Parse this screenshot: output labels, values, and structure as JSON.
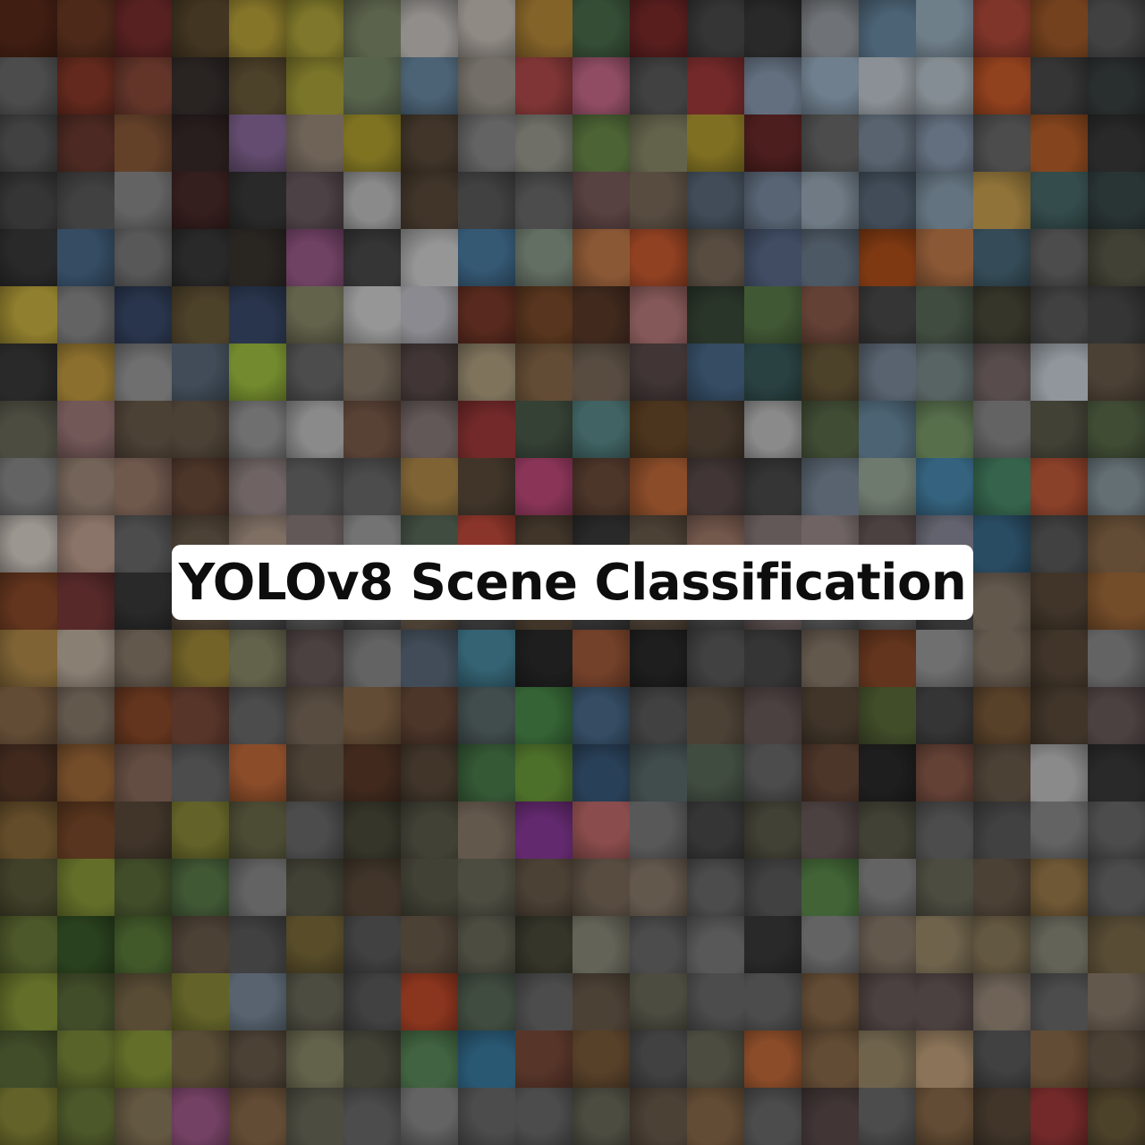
{
  "title": "YOLOv8 Scene Classification",
  "colors": {
    "card_background": "#ffffff",
    "title_text": "#0d0d0d",
    "page_background": "#000000"
  },
  "mosaic": {
    "rows": 20,
    "columns": 20,
    "tile_palette": [
      [
        "#5a2a1a",
        "#6b3a24",
        "#7a2e2e",
        "#5c4a2e",
        "#b8a23a",
        "#b0a63c",
        "#7f8a6a",
        "#c8c4c0",
        "#c8c0b8",
        "#b88a3a",
        "#4a6a4a",
        "#7a2a2a",
        "#4a4a4a",
        "#3a3a3a",
        "#9aa0a6",
        "#6a8aa4",
        "#9ab0c0",
        "#b04a3a",
        "#a05a2a",
        "#5a5a5a"
      ],
      [
        "#6a6a6a",
        "#8a3a2a",
        "#8a4a3a",
        "#3a3230",
        "#6a5a3a",
        "#aaa23a",
        "#7a8a6a",
        "#6a8aa4",
        "#a09a90",
        "#b04a4a",
        "#c86a8a",
        "#5a5a5a",
        "#a03a3a",
        "#8a9ab0",
        "#9ab0c4",
        "#c0c8d0",
        "#b8c4cc",
        "#c85a2a",
        "#4a4a4a",
        "#3a4040"
      ],
      [
        "#5a5a5a",
        "#6a3a30",
        "#8a5a3a",
        "#3a2a2a",
        "#8a6a9a",
        "#9a8a7a",
        "#b0a030",
        "#5a4a3a",
        "#8a8a8a",
        "#9a9a90",
        "#6a8a4a",
        "#8a8a6a",
        "#b09a30",
        "#6a2a2a",
        "#6a6a6a",
        "#7a8a9a",
        "#8a9ab0",
        "#6a6a6a",
        "#b8602a",
        "#3a3a3a"
      ],
      [
        "#4a4a4a",
        "#5a5a5a",
        "#8a8a8a",
        "#4a2a2a",
        "#3a3a3a",
        "#6a5a60",
        "#c0c0c0",
        "#5a4a3a",
        "#5a5a5a",
        "#6a6a6a",
        "#7a5a5a",
        "#7a6a5a",
        "#5a6a7a",
        "#7a8aa0",
        "#9aaab8",
        "#5a6a7a",
        "#8aa0b0",
        "#c8a050",
        "#4a6a6a",
        "#3a4a4a"
      ],
      [
        "#3a3a3a",
        "#4a6a8a",
        "#7a7a7a",
        "#3a3a3a",
        "#3a3530",
        "#9a5a8a",
        "#4a4a4a",
        "#d0d0d0",
        "#4a7aa0",
        "#8a9a8a",
        "#c07a4a",
        "#c85a30",
        "#7a6a5a",
        "#5a6a8a",
        "#6a7a8a",
        "#b0501a",
        "#c07a4a",
        "#4a6a7a",
        "#6a6a6a",
        "#5a5a4a"
      ],
      [
        "#c8b040",
        "#8a8a8a",
        "#3a4a6a",
        "#6a5a3a",
        "#3a4a6a",
        "#8a8a6a",
        "#d0d0d0",
        "#c0c0c8",
        "#7a3a2a",
        "#7a4a2a",
        "#5a3a2a",
        "#b87a7a",
        "#3a4a3a",
        "#5a7a4a",
        "#8a5a4a",
        "#4a4a4a",
        "#5a6a5a",
        "#4a4a3a",
        "#5a5a5a",
        "#4a4a4a"
      ],
      [
        "#3a3a3a",
        "#c09a40",
        "#9a9a9a",
        "#5a6a7a",
        "#a0c040",
        "#6a6a6a",
        "#8a7a6a",
        "#5a4a4a",
        "#b0a080",
        "#8a6a4a",
        "#7a6a5a",
        "#5a4a4a",
        "#4a6a8a",
        "#3a5a5a",
        "#6a5a3a",
        "#7a8a9a",
        "#7a8a8a",
        "#7a6a6a",
        "#c8d0d8",
        "#6a5a4a"
      ],
      [
        "#6a6a5a",
        "#a07a7a",
        "#6a5a4a",
        "#6a5a4a",
        "#9a9a9a",
        "#c0c0c0",
        "#7a5a4a",
        "#8a7a7a",
        "#a03a3a",
        "#4a5a4a",
        "#5a8a8a",
        "#6a4a2a",
        "#5a4a3a",
        "#c0c0c0",
        "#5a6a4a",
        "#6a8aa0",
        "#7a9a6a",
        "#8a8a8a",
        "#5a5a4a",
        "#5a6a4a"
      ],
      [
        "#8a8a8a",
        "#a08a7a",
        "#9a7a6a",
        "#6a4a3a",
        "#9a8a8a",
        "#6a6a6a",
        "#6a6a6a",
        "#b08a4a",
        "#5a4a3a",
        "#c04a7a",
        "#6a4a3a",
        "#c06a3a",
        "#5a4a4a",
        "#4a4a4a",
        "#7a8a9a",
        "#9aaa9a",
        "#4a8ab0",
        "#4a8a6a",
        "#c05a3a",
        "#8a9aa0"
      ],
      [
        "#d8d0c8",
        "#c0a090",
        "#6a6a6a",
        "#6a5a4a",
        "#b09a8a",
        "#8a7a7a",
        "#a0a0a0",
        "#5a6a5a",
        "#c04a3a",
        "#5a4a3a",
        "#3a3a3a",
        "#6a5a4a",
        "#a07a6a",
        "#8a7a7a",
        "#9a8a8a",
        "#6a5a5a",
        "#8a8a9a",
        "#3a6a8a",
        "#5a5a5a",
        "#8a6a4a"
      ],
      [
        "#8a4a2a",
        "#7a3a3a",
        "#3a3a3a",
        "#6a5a4a",
        "#5a5a5a",
        "#6a6a6a",
        "#5a5a5a",
        "#6a5a4a",
        "#4a4a4a",
        "#5a4a3a",
        "#4a4a4a",
        "#6a5a4a",
        "#5a5a5a",
        "#7a6a6a",
        "#6a6a6a",
        "#6a6a6a",
        "#4a4a4a",
        "#8a7a6a",
        "#5a4a3a",
        "#a06a3a"
      ],
      [
        "#b08a4a",
        "#c0b0a0",
        "#8a7a6a",
        "#a08a3a",
        "#8a8a6a",
        "#6a5a5a",
        "#8a8a8a",
        "#5a6a7a",
        "#4a8aa0",
        "#2a2a2a",
        "#a05a3a",
        "#2a2a2a",
        "#5a5a5a",
        "#4a4a4a",
        "#8a7a6a",
        "#8a4a2a",
        "#9a9a9a",
        "#8a7a6a",
        "#5a4a3a",
        "#8a8a8a"
      ],
      [
        "#8a6a4a",
        "#8a7a6a",
        "#8a4a2a",
        "#7a4a3a",
        "#6a6a6a",
        "#7a6a5a",
        "#8a6a4a",
        "#6a4a3a",
        "#5a6a6a",
        "#4a8a4a",
        "#4a6a8a",
        "#5a5a5a",
        "#6a5a4a",
        "#6a5a5a",
        "#5a4a3a",
        "#5a6a3a",
        "#4a4a4a",
        "#7a5a3a",
        "#5a4a3a",
        "#6a5a5a"
      ],
      [
        "#5a3a2a",
        "#a06a3a",
        "#8a6a5a",
        "#6a6a6a",
        "#c06a3a",
        "#6a5a4a",
        "#5a3a2a",
        "#5a4a3a",
        "#4a7a4a",
        "#6a9a3a",
        "#3a5a7a",
        "#5a6a6a",
        "#5a6a5a",
        "#6a6a6a",
        "#6a4a3a",
        "#2a2a2a",
        "#8a5a4a",
        "#6a5a4a",
        "#c0c0c0",
        "#3a3a3a"
      ],
      [
        "#8a6a3a",
        "#7a4a2a",
        "#5a4a3a",
        "#8a8a3a",
        "#6a6a4a",
        "#6a6a6a",
        "#4a4a3a",
        "#5a5a4a",
        "#8a7a6a",
        "#8a3a9a",
        "#c06a6a",
        "#7a7a7a",
        "#4a4a4a",
        "#5a5a4a",
        "#6a5a5a",
        "#5a5a4a",
        "#6a6a6a",
        "#5a5a5a",
        "#8a8a8a",
        "#6a6a6a"
      ],
      [
        "#5a5a3a",
        "#8a9a3a",
        "#5a6a3a",
        "#5a7a4a",
        "#8a8a8a",
        "#5a5a4a",
        "#5a4a3a",
        "#5a5a4a",
        "#6a6a5a",
        "#6a5a4a",
        "#7a6a5a",
        "#8a7a6a",
        "#6a6a6a",
        "#5a5a5a",
        "#5a8a4a",
        "#8a8a8a",
        "#6a6a5a",
        "#6a5a4a",
        "#9a7a4a",
        "#6a6a6a"
      ],
      [
        "#6a7a3a",
        "#3a5a2a",
        "#5a7a3a",
        "#6a5a4a",
        "#5a5a5a",
        "#7a6a3a",
        "#5a5a5a",
        "#6a5a4a",
        "#6a6a5a",
        "#4a4a3a",
        "#8a8a7a",
        "#6a6a6a",
        "#7a7a7a",
        "#3a3a3a",
        "#8a8a8a",
        "#8a7a6a",
        "#9a8a6a",
        "#8a7a5a",
        "#8a8a7a",
        "#7a6a4a"
      ],
      [
        "#8a9a3a",
        "#5a6a3a",
        "#7a6a4a",
        "#8a8a3a",
        "#7a8a9a",
        "#6a6a5a",
        "#5a5a5a",
        "#c04a2a",
        "#5a6a5a",
        "#6a6a6a",
        "#6a5a4a",
        "#6a6a5a",
        "#6a6a6a",
        "#6a6a6a",
        "#8a6a4a",
        "#6a5a5a",
        "#6a5a5a",
        "#9a8a7a",
        "#6a6a6a",
        "#8a7a6a"
      ],
      [
        "#5a6a3a",
        "#7a8a3a",
        "#8a9a3a",
        "#7a6a4a",
        "#6a5a4a",
        "#8a8a6a",
        "#5a5a4a",
        "#5a8a5a",
        "#3a7aa0",
        "#7a4a3a",
        "#7a5a3a",
        "#5a5a5a",
        "#6a6a5a",
        "#c06a3a",
        "#8a6a4a",
        "#9a8a6a",
        "#c0a07a",
        "#5a5a5a",
        "#8a6a4a",
        "#6a5a4a"
      ],
      [
        "#8a8a3a",
        "#6a7a3a",
        "#8a7a5a",
        "#a05a8a",
        "#8a6a4a",
        "#6a6a5a",
        "#6a6a6a",
        "#8a8a8a",
        "#6a6a6a",
        "#6a6a6a",
        "#6a6a5a",
        "#6a5a4a",
        "#8a6a4a",
        "#6a6a6a",
        "#5a4a4a",
        "#6a6a6a",
        "#8a6a4a",
        "#5a4a3a",
        "#a03a3a",
        "#6a5a3a"
      ]
    ]
  }
}
